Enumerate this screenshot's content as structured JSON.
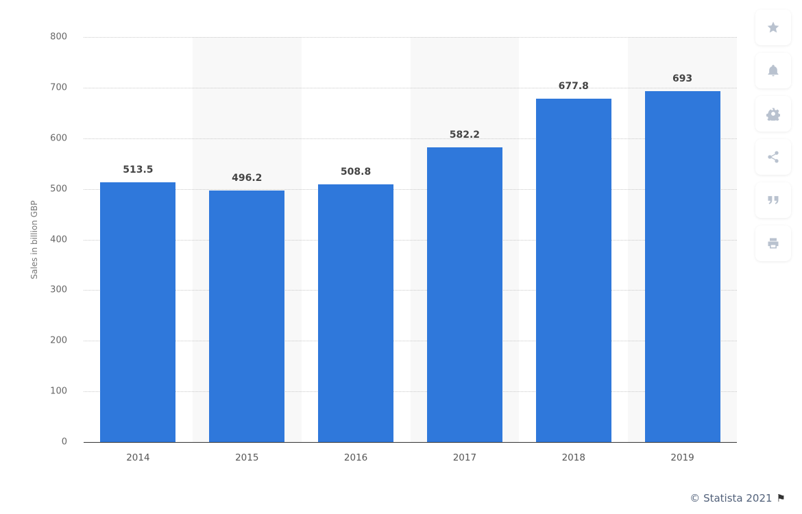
{
  "chart_data": {
    "type": "bar",
    "title": "",
    "xlabel": "",
    "ylabel": "Sales in billion GBP",
    "categories": [
      "2014",
      "2015",
      "2016",
      "2017",
      "2018",
      "2019"
    ],
    "values": [
      513.5,
      496.2,
      508.8,
      582.2,
      677.8,
      693
    ],
    "value_labels": [
      "513.5",
      "496.2",
      "508.8",
      "582.2",
      "677.8",
      "693"
    ],
    "ylim": [
      0,
      800
    ],
    "yticks": [
      "0",
      "100",
      "200",
      "300",
      "400",
      "500",
      "600",
      "700",
      "800"
    ],
    "grid": true,
    "legend": null,
    "bar_color": "#2f78db"
  },
  "sidebar": {
    "buttons": [
      {
        "name": "favorite",
        "icon": "star-icon"
      },
      {
        "name": "notify",
        "icon": "bell-icon"
      },
      {
        "name": "settings",
        "icon": "gear-icon"
      },
      {
        "name": "share",
        "icon": "share-icon"
      },
      {
        "name": "cite",
        "icon": "quote-icon"
      },
      {
        "name": "print",
        "icon": "printer-icon"
      }
    ]
  },
  "footer": {
    "credit": "© Statista 2021",
    "flag_icon": "flag-icon"
  }
}
